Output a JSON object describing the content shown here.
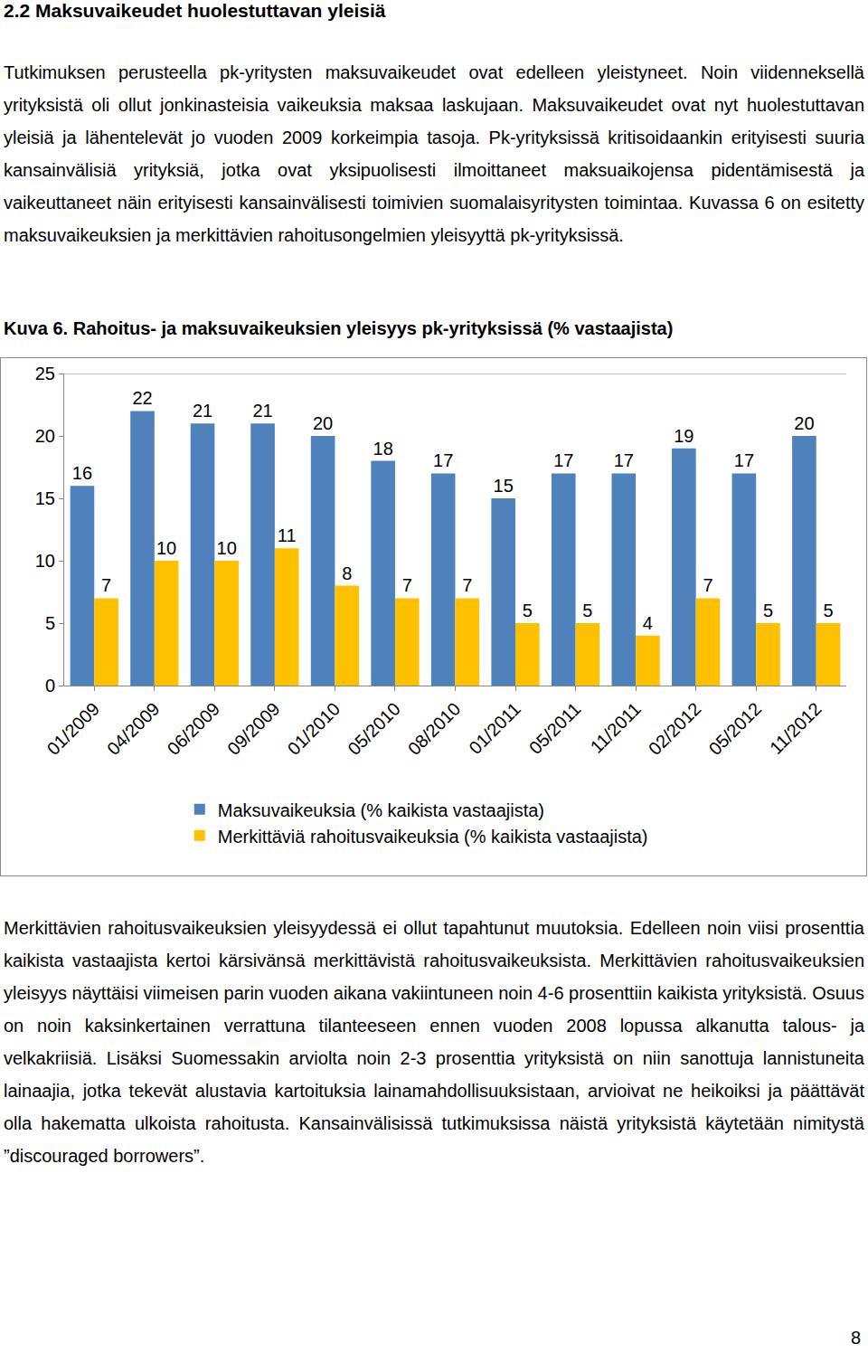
{
  "heading": "2.2 Maksuvaikeudet huolestuttavan yleisiä",
  "paragraphs_before": [
    "Tutkimuksen perusteella pk-yritysten maksuvaikeudet ovat edelleen yleistyneet. Noin viidenneksellä yrityksistä oli ollut jonkinasteisia vaikeuksia maksaa laskujaan. Maksuvaikeudet ovat nyt huolestuttavan yleisiä ja lähentelevät jo vuoden 2009 korkeimpia tasoja. Pk-yrityksissä kritisoidaankin erityisesti suuria kansainvälisiä yrityksiä, jotka ovat yksipuolisesti ilmoittaneet maksuaikojensa pidentämisestä ja vaikeuttaneet näin erityisesti kansainvälisesti toimivien suomalaisyritysten toimintaa. Kuvassa 6 on esitetty maksuvaikeuksien ja merkittävien rahoitusongelmien yleisyyttä pk-yrityksissä."
  ],
  "chart_data": {
    "type": "bar",
    "title": "Kuva 6. Rahoitus- ja maksuvaikeuksien yleisyys pk-yrityksissä (% vastaajista)",
    "categories": [
      "01/2009",
      "04/2009",
      "06/2009",
      "09/2009",
      "01/2010",
      "05/2010",
      "08/2010",
      "01/2011",
      "05/2011",
      "11/2011",
      "02/2012",
      "05/2012",
      "11/2012"
    ],
    "series": [
      {
        "name": "Maksuvaikeuksia (% kaikista vastaajista)",
        "color": "#4f81bd",
        "values": [
          16,
          22,
          21,
          21,
          20,
          18,
          17,
          15,
          17,
          17,
          19,
          17,
          20
        ]
      },
      {
        "name": "Merkittäviä rahoitusvaikeuksia (% kaikista vastaajista)",
        "color": "#ffc000",
        "values": [
          7,
          10,
          10,
          11,
          8,
          7,
          7,
          5,
          5,
          4,
          7,
          5,
          5
        ]
      }
    ],
    "ylim": [
      0,
      25
    ],
    "yticks": [
      0,
      5,
      10,
      15,
      20,
      25
    ],
    "grid": false,
    "legend": "bottom",
    "data_labels": true
  },
  "paragraphs_after": [
    "Merkittävien rahoitusvaikeuksien yleisyydessä ei ollut tapahtunut muutoksia. Edelleen noin viisi prosenttia kaikista vastaajista kertoi kärsivänsä merkittävistä rahoitusvaikeuksista. Merkittävien rahoitusvaikeuksien yleisyys näyttäisi viimeisen parin vuoden aikana vakiintuneen noin 4-6 prosenttiin kaikista yrityksistä. Osuus on noin kaksinkertainen verrattuna tilanteeseen ennen vuoden 2008 lopussa alkanutta talous- ja velkakriisiä. Lisäksi Suomessakin arviolta noin 2-3 prosenttia yrityksistä on niin sanottuja lannistuneita lainaajia, jotka tekevät alustavia kartoituksia lainamahdollisuuksistaan, arvioivat ne heikoiksi ja päättävät olla hakematta ulkoista rahoitusta. Kansainvälisissä tutkimuksissa näistä yrityksistä käytetään nimitystä ”discouraged borrowers”."
  ],
  "page_number": "8"
}
